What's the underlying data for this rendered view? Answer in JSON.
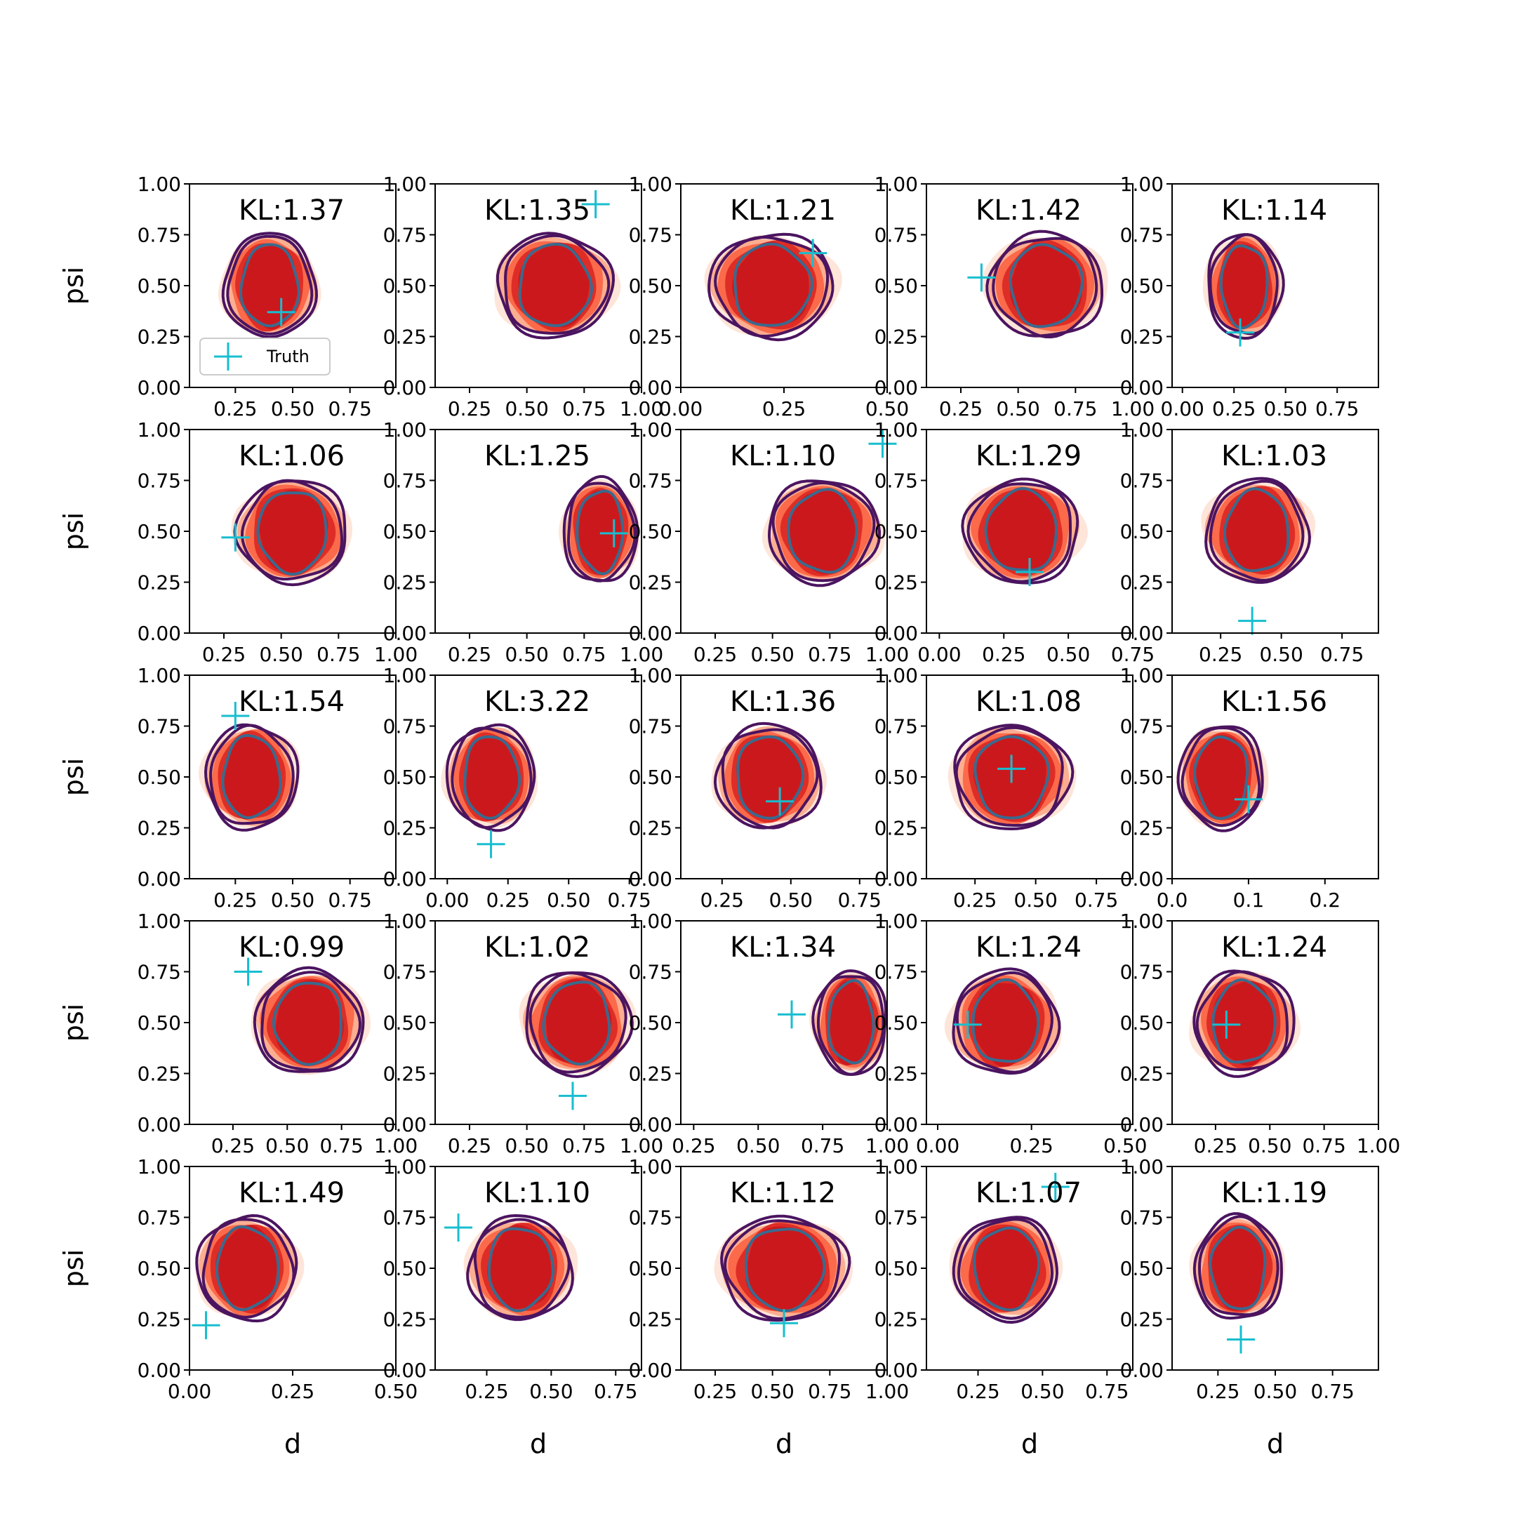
{
  "colors": {
    "kde_fill": [
      "#fee5d9",
      "#fcae91",
      "#fb6a4a",
      "#de2d26",
      "#cb181d"
    ],
    "contour_outer": "#4b1460",
    "contour_mid": "#4b1460",
    "contour_inner": "#3a6a8e",
    "truth": "#17becf"
  },
  "legend": {
    "label": "Truth"
  },
  "chart_data": [
    {
      "type": "kde2d",
      "row": 0,
      "col": 0,
      "title": "KL:1.37",
      "xlabel": "",
      "ylabel": "psi",
      "xlim": [
        0.05,
        0.95
      ],
      "xticks": [
        "0.25",
        "0.50",
        "0.75"
      ],
      "ylim": [
        0,
        1
      ],
      "yticks": [
        "0.00",
        "0.25",
        "0.50",
        "0.75",
        "1.00"
      ],
      "center": [
        0.4,
        0.5
      ],
      "spread": [
        0.4,
        0.5
      ],
      "truth": [
        0.45,
        0.37
      ]
    },
    {
      "type": "kde2d",
      "row": 0,
      "col": 1,
      "title": "KL:1.35",
      "xlabel": "",
      "ylabel": "",
      "xlim": [
        0.1,
        1.0
      ],
      "xticks": [
        "0.25",
        "0.50",
        "0.75",
        "1.00"
      ],
      "ylim": [
        0,
        1
      ],
      "yticks": [
        "0.00",
        "0.25",
        "0.50",
        "0.75",
        "1.00"
      ],
      "center": [
        0.62,
        0.5
      ],
      "spread": [
        0.5,
        0.5
      ],
      "truth": [
        0.8,
        0.9
      ]
    },
    {
      "type": "kde2d",
      "row": 0,
      "col": 2,
      "title": "KL:1.21",
      "xlabel": "",
      "ylabel": "",
      "xlim": [
        0.0,
        0.5
      ],
      "xticks": [
        "0.00",
        "0.25",
        "0.50"
      ],
      "ylim": [
        0,
        1
      ],
      "yticks": [
        "0.00",
        "0.25",
        "0.50",
        "0.75",
        "1.00"
      ],
      "center": [
        0.22,
        0.5
      ],
      "spread": [
        0.3,
        0.5
      ],
      "truth": [
        0.32,
        0.66
      ]
    },
    {
      "type": "kde2d",
      "row": 0,
      "col": 3,
      "title": "KL:1.42",
      "xlabel": "",
      "ylabel": "",
      "xlim": [
        0.1,
        1.0
      ],
      "xticks": [
        "0.25",
        "0.50",
        "0.75",
        "1.00"
      ],
      "ylim": [
        0,
        1
      ],
      "yticks": [
        "0.00",
        "0.25",
        "0.50",
        "0.75",
        "1.00"
      ],
      "center": [
        0.62,
        0.5
      ],
      "spread": [
        0.5,
        0.5
      ],
      "truth": [
        0.34,
        0.54
      ]
    },
    {
      "type": "kde2d",
      "row": 0,
      "col": 4,
      "title": "KL:1.14",
      "xlabel": "",
      "ylabel": "",
      "xlim": [
        -0.05,
        0.95
      ],
      "xticks": [
        "0.00",
        "0.25",
        "0.50",
        "0.75"
      ],
      "ylim": [
        0,
        1
      ],
      "yticks": [
        "0.00",
        "0.25",
        "0.50",
        "0.75",
        "1.00"
      ],
      "center": [
        0.3,
        0.5
      ],
      "spread": [
        0.36,
        0.5
      ],
      "truth": [
        0.28,
        0.27
      ]
    },
    {
      "type": "kde2d",
      "row": 1,
      "col": 0,
      "title": "KL:1.06",
      "xlabel": "",
      "ylabel": "psi",
      "xlim": [
        0.1,
        1.0
      ],
      "xticks": [
        "0.25",
        "0.50",
        "0.75",
        "1.00"
      ],
      "ylim": [
        0,
        1
      ],
      "yticks": [
        "0.00",
        "0.25",
        "0.50",
        "0.75",
        "1.00"
      ],
      "center": [
        0.55,
        0.5
      ],
      "spread": [
        0.48,
        0.5
      ],
      "truth": [
        0.3,
        0.47
      ]
    },
    {
      "type": "kde2d",
      "row": 1,
      "col": 1,
      "title": "KL:1.25",
      "xlabel": "",
      "ylabel": "",
      "xlim": [
        0.1,
        1.0
      ],
      "xticks": [
        "0.25",
        "0.50",
        "0.75",
        "1.00"
      ],
      "ylim": [
        0,
        1
      ],
      "yticks": [
        "0.00",
        "0.25",
        "0.50",
        "0.75",
        "1.00"
      ],
      "center": [
        0.82,
        0.5
      ],
      "spread": [
        0.32,
        0.5
      ],
      "truth": [
        0.88,
        0.49
      ]
    },
    {
      "type": "kde2d",
      "row": 1,
      "col": 2,
      "title": "KL:1.10",
      "xlabel": "",
      "ylabel": "",
      "xlim": [
        0.1,
        1.0
      ],
      "xticks": [
        "0.25",
        "0.50",
        "0.75",
        "1.00"
      ],
      "ylim": [
        0,
        1
      ],
      "yticks": [
        "0.00",
        "0.25",
        "0.50",
        "0.75",
        "1.00"
      ],
      "center": [
        0.72,
        0.5
      ],
      "spread": [
        0.48,
        0.5
      ],
      "truth": [
        0.98,
        0.93
      ]
    },
    {
      "type": "kde2d",
      "row": 1,
      "col": 3,
      "title": "KL:1.29",
      "xlabel": "",
      "ylabel": "",
      "xlim": [
        -0.05,
        0.75
      ],
      "xticks": [
        "0.00",
        "0.25",
        "0.50",
        "0.75"
      ],
      "ylim": [
        0,
        1
      ],
      "yticks": [
        "0.00",
        "0.25",
        "0.50",
        "0.75",
        "1.00"
      ],
      "center": [
        0.32,
        0.5
      ],
      "spread": [
        0.44,
        0.5
      ],
      "truth": [
        0.35,
        0.3
      ]
    },
    {
      "type": "kde2d",
      "row": 1,
      "col": 4,
      "title": "KL:1.03",
      "xlabel": "",
      "ylabel": "",
      "xlim": [
        0.05,
        0.9
      ],
      "xticks": [
        "0.25",
        "0.50",
        "0.75"
      ],
      "ylim": [
        0,
        1
      ],
      "yticks": [
        "0.00",
        "0.25",
        "0.50",
        "0.75",
        "1.00"
      ],
      "center": [
        0.4,
        0.5
      ],
      "spread": [
        0.42,
        0.5
      ],
      "truth": [
        0.38,
        0.06
      ]
    },
    {
      "type": "kde2d",
      "row": 2,
      "col": 0,
      "title": "KL:1.54",
      "xlabel": "",
      "ylabel": "psi",
      "xlim": [
        0.05,
        0.95
      ],
      "xticks": [
        "0.25",
        "0.50",
        "0.75"
      ],
      "ylim": [
        0,
        1
      ],
      "yticks": [
        "0.00",
        "0.25",
        "0.50",
        "0.75",
        "1.00"
      ],
      "center": [
        0.32,
        0.5
      ],
      "spread": [
        0.4,
        0.5
      ],
      "truth": [
        0.25,
        0.8
      ]
    },
    {
      "type": "kde2d",
      "row": 2,
      "col": 1,
      "title": "KL:3.22",
      "xlabel": "",
      "ylabel": "",
      "xlim": [
        -0.05,
        0.8
      ],
      "xticks": [
        "0.00",
        "0.25",
        "0.50",
        "0.75"
      ],
      "ylim": [
        0,
        1
      ],
      "yticks": [
        "0.00",
        "0.25",
        "0.50",
        "0.75",
        "1.00"
      ],
      "center": [
        0.18,
        0.5
      ],
      "spread": [
        0.36,
        0.5
      ],
      "truth": [
        0.18,
        0.17
      ]
    },
    {
      "type": "kde2d",
      "row": 2,
      "col": 2,
      "title": "KL:1.36",
      "xlabel": "",
      "ylabel": "",
      "xlim": [
        0.1,
        0.85
      ],
      "xticks": [
        "0.25",
        "0.50",
        "0.75"
      ],
      "ylim": [
        0,
        1
      ],
      "yticks": [
        "0.00",
        "0.25",
        "0.50",
        "0.75",
        "1.00"
      ],
      "center": [
        0.42,
        0.5
      ],
      "spread": [
        0.38,
        0.5
      ],
      "truth": [
        0.46,
        0.38
      ]
    },
    {
      "type": "kde2d",
      "row": 2,
      "col": 3,
      "title": "KL:1.08",
      "xlabel": "",
      "ylabel": "",
      "xlim": [
        0.05,
        0.9
      ],
      "xticks": [
        "0.25",
        "0.50",
        "0.75"
      ],
      "ylim": [
        0,
        1
      ],
      "yticks": [
        "0.00",
        "0.25",
        "0.50",
        "0.75",
        "1.00"
      ],
      "center": [
        0.4,
        0.5
      ],
      "spread": [
        0.48,
        0.5
      ],
      "truth": [
        0.4,
        0.54
      ]
    },
    {
      "type": "kde2d",
      "row": 2,
      "col": 4,
      "title": "KL:1.56",
      "xlabel": "",
      "ylabel": "",
      "xlim": [
        0.0,
        0.27
      ],
      "xticks": [
        "0.0",
        "0.1",
        "0.2"
      ],
      "ylim": [
        0,
        1
      ],
      "yticks": [
        "0.00",
        "0.25",
        "0.50",
        "0.75",
        "1.00"
      ],
      "center": [
        0.065,
        0.5
      ],
      "spread": [
        0.11,
        0.5
      ],
      "truth": [
        0.1,
        0.39
      ]
    },
    {
      "type": "kde2d",
      "row": 3,
      "col": 0,
      "title": "KL:0.99",
      "xlabel": "",
      "ylabel": "psi",
      "xlim": [
        0.05,
        1.0
      ],
      "xticks": [
        "0.25",
        "0.50",
        "0.75",
        "1.00"
      ],
      "ylim": [
        0,
        1
      ],
      "yticks": [
        "0.00",
        "0.25",
        "0.50",
        "0.75",
        "1.00"
      ],
      "center": [
        0.6,
        0.5
      ],
      "spread": [
        0.5,
        0.5
      ],
      "truth": [
        0.32,
        0.75
      ]
    },
    {
      "type": "kde2d",
      "row": 3,
      "col": 1,
      "title": "KL:1.02",
      "xlabel": "",
      "ylabel": "",
      "xlim": [
        0.1,
        1.0
      ],
      "xticks": [
        "0.25",
        "0.50",
        "0.75",
        "1.00"
      ],
      "ylim": [
        0,
        1
      ],
      "yticks": [
        "0.00",
        "0.25",
        "0.50",
        "0.75",
        "1.00"
      ],
      "center": [
        0.72,
        0.5
      ],
      "spread": [
        0.46,
        0.5
      ],
      "truth": [
        0.7,
        0.14
      ]
    },
    {
      "type": "kde2d",
      "row": 3,
      "col": 2,
      "title": "KL:1.34",
      "xlabel": "",
      "ylabel": "",
      "xlim": [
        0.2,
        1.0
      ],
      "xticks": [
        "0.25",
        "0.50",
        "0.75",
        "1.00"
      ],
      "ylim": [
        0,
        1
      ],
      "yticks": [
        "0.00",
        "0.25",
        "0.50",
        "0.75",
        "1.00"
      ],
      "center": [
        0.86,
        0.5
      ],
      "spread": [
        0.28,
        0.5
      ],
      "truth": [
        0.63,
        0.54
      ]
    },
    {
      "type": "kde2d",
      "row": 3,
      "col": 3,
      "title": "KL:1.24",
      "xlabel": "",
      "ylabel": "",
      "xlim": [
        -0.03,
        0.52
      ],
      "xticks": [
        "0.00",
        "0.25",
        "0.50"
      ],
      "ylim": [
        0,
        1
      ],
      "yticks": [
        "0.00",
        "0.25",
        "0.50",
        "0.75",
        "1.00"
      ],
      "center": [
        0.18,
        0.5
      ],
      "spread": [
        0.28,
        0.5
      ],
      "truth": [
        0.08,
        0.49
      ]
    },
    {
      "type": "kde2d",
      "row": 3,
      "col": 4,
      "title": "KL:1.24",
      "xlabel": "",
      "ylabel": "",
      "xlim": [
        0.05,
        1.0
      ],
      "xticks": [
        "0.25",
        "0.50",
        "0.75",
        "1.00"
      ],
      "ylim": [
        0,
        1
      ],
      "yticks": [
        "0.00",
        "0.25",
        "0.50",
        "0.75",
        "1.00"
      ],
      "center": [
        0.38,
        0.5
      ],
      "spread": [
        0.46,
        0.5
      ],
      "truth": [
        0.3,
        0.49
      ]
    },
    {
      "type": "kde2d",
      "row": 4,
      "col": 0,
      "title": "KL:1.49",
      "xlabel": "d",
      "ylabel": "psi",
      "xlim": [
        0.0,
        0.5
      ],
      "xticks": [
        "0.00",
        "0.25",
        "0.50"
      ],
      "ylim": [
        0,
        1
      ],
      "yticks": [
        "0.00",
        "0.25",
        "0.50",
        "0.75",
        "1.00"
      ],
      "center": [
        0.14,
        0.5
      ],
      "spread": [
        0.24,
        0.5
      ],
      "truth": [
        0.04,
        0.22
      ]
    },
    {
      "type": "kde2d",
      "row": 4,
      "col": 1,
      "title": "KL:1.10",
      "xlabel": "d",
      "ylabel": "",
      "xlim": [
        0.05,
        0.85
      ],
      "xticks": [
        "0.25",
        "0.50",
        "0.75"
      ],
      "ylim": [
        0,
        1
      ],
      "yticks": [
        "0.00",
        "0.25",
        "0.50",
        "0.75",
        "1.00"
      ],
      "center": [
        0.38,
        0.5
      ],
      "spread": [
        0.4,
        0.5
      ],
      "truth": [
        0.14,
        0.7
      ]
    },
    {
      "type": "kde2d",
      "row": 4,
      "col": 2,
      "title": "KL:1.12",
      "xlabel": "d",
      "ylabel": "",
      "xlim": [
        0.1,
        1.0
      ],
      "xticks": [
        "0.25",
        "0.50",
        "0.75",
        "1.00"
      ],
      "ylim": [
        0,
        1
      ],
      "yticks": [
        "0.00",
        "0.25",
        "0.50",
        "0.75",
        "1.00"
      ],
      "center": [
        0.55,
        0.5
      ],
      "spread": [
        0.55,
        0.5
      ],
      "truth": [
        0.55,
        0.23
      ]
    },
    {
      "type": "kde2d",
      "row": 4,
      "col": 3,
      "title": "KL:1.07",
      "xlabel": "d",
      "ylabel": "",
      "xlim": [
        0.05,
        0.85
      ],
      "xticks": [
        "0.25",
        "0.50",
        "0.75"
      ],
      "ylim": [
        0,
        1
      ],
      "yticks": [
        "0.00",
        "0.25",
        "0.50",
        "0.75",
        "1.00"
      ],
      "center": [
        0.36,
        0.5
      ],
      "spread": [
        0.4,
        0.5
      ],
      "truth": [
        0.55,
        0.9
      ]
    },
    {
      "type": "kde2d",
      "row": 4,
      "col": 4,
      "title": "KL:1.19",
      "xlabel": "d",
      "ylabel": "",
      "xlim": [
        0.05,
        0.95
      ],
      "xticks": [
        "0.25",
        "0.50",
        "0.75"
      ],
      "ylim": [
        0,
        1
      ],
      "yticks": [
        "0.00",
        "0.25",
        "0.50",
        "0.75",
        "1.00"
      ],
      "center": [
        0.34,
        0.5
      ],
      "spread": [
        0.38,
        0.5
      ],
      "truth": [
        0.35,
        0.15
      ]
    }
  ]
}
